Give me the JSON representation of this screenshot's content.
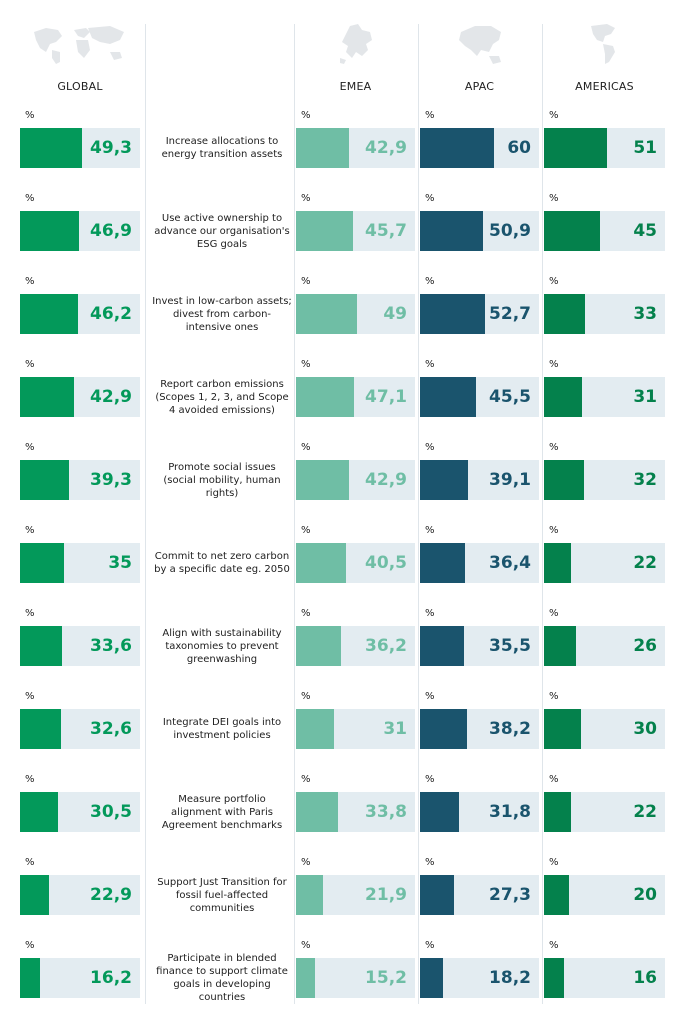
{
  "chart_data": {
    "type": "bar",
    "unit": "%",
    "categories": [
      "Increase allocations to energy transition assets",
      "Use active ownership to advance our organisation's ESG goals",
      "Invest in low-carbon assets; divest from carbon-intensive ones",
      "Report carbon emissions (Scopes 1, 2, 3, and Scope 4 avoided emissions)",
      "Promote social issues (social mobility, human rights)",
      "Commit to net zero carbon by a specific date eg. 2050",
      "Align with sustainability taxonomies to prevent greenwashing",
      "Integrate DEI goals into investment policies",
      "Measure portfolio alignment with Paris Agreement benchmarks",
      "Support Just Transition for fossil fuel-affected communities",
      "Participate in blended finance to support climate goals in developing countries"
    ],
    "series": [
      {
        "name": "GLOBAL",
        "color": "#03995a",
        "text_color": "#03995a",
        "values": [
          49.3,
          46.9,
          46.2,
          42.9,
          39.3,
          35,
          33.6,
          32.6,
          30.5,
          22.9,
          16.2
        ],
        "labels": [
          "49,3",
          "46,9",
          "46,2",
          "42,9",
          "39,3",
          "35",
          "33,6",
          "32,6",
          "30,5",
          "22,9",
          "16,2"
        ]
      },
      {
        "name": "EMEA",
        "color": "#6fbea5",
        "text_color": "#6fbea5",
        "values": [
          42.9,
          45.7,
          49,
          47.1,
          42.9,
          40.5,
          36.2,
          31,
          33.8,
          21.9,
          15.2
        ],
        "labels": [
          "42,9",
          "45,7",
          "49",
          "47,1",
          "42,9",
          "40,5",
          "36,2",
          "31",
          "33,8",
          "21,9",
          "15,2"
        ]
      },
      {
        "name": "APAC",
        "color": "#1a546d",
        "text_color": "#1a546d",
        "values": [
          60,
          50.9,
          52.7,
          45.5,
          39.1,
          36.4,
          35.5,
          38.2,
          31.8,
          27.3,
          18.2
        ],
        "labels": [
          "60",
          "50,9",
          "52,7",
          "45,5",
          "39,1",
          "36,4",
          "35,5",
          "38,2",
          "31,8",
          "27,3",
          "18,2"
        ]
      },
      {
        "name": "AMERICAS",
        "color": "#04814c",
        "text_color": "#04814c",
        "values": [
          51,
          45,
          33,
          31,
          32,
          22,
          26,
          30,
          22,
          20,
          16
        ],
        "labels": [
          "51",
          "45",
          "33",
          "31",
          "32",
          "22",
          "26",
          "30",
          "22",
          "20",
          "16"
        ]
      }
    ],
    "xlim": [
      0,
      100
    ],
    "track_color": "#e3ecf1",
    "icons": [
      "world-map-icon",
      "europe-map-icon",
      "asia-map-icon",
      "americas-map-icon"
    ]
  }
}
